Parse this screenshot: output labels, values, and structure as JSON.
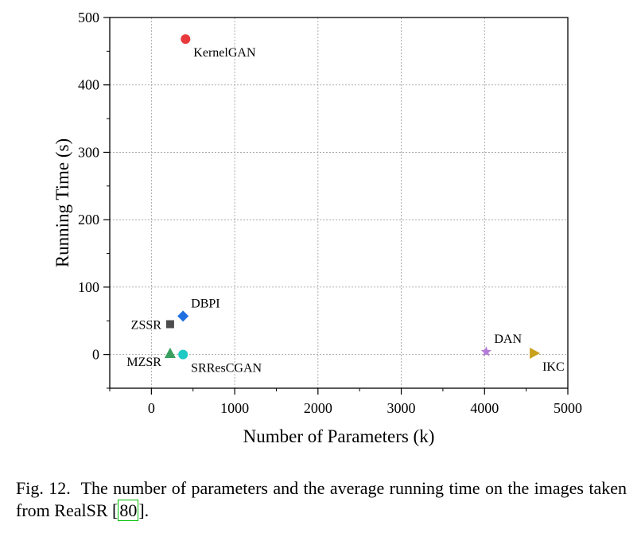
{
  "chart_data": {
    "type": "scatter",
    "xlabel": "Number of Parameters (k)",
    "ylabel": "Running Time (s)",
    "xlim": [
      -500,
      5000
    ],
    "ylim": [
      -50,
      500
    ],
    "xticks": [
      0,
      1000,
      2000,
      3000,
      4000,
      5000
    ],
    "yticks": [
      0,
      100,
      200,
      300,
      400,
      500
    ],
    "x_tick_labels": [
      "0",
      "1000",
      "2000",
      "3000",
      "4000",
      "5000"
    ],
    "y_tick_labels": [
      "0",
      "100",
      "200",
      "300",
      "400",
      "500"
    ],
    "grid": true,
    "points": [
      {
        "label": "KernelGAN",
        "x": 410,
        "y": 468,
        "marker": "circle",
        "color": "#e8393c",
        "label_pos": "below-right"
      },
      {
        "label": "DBPI",
        "x": 380,
        "y": 57,
        "marker": "diamond",
        "color": "#1f6fe0",
        "label_pos": "above-right"
      },
      {
        "label": "ZSSR",
        "x": 225,
        "y": 45,
        "marker": "square",
        "color": "#4d4d4d",
        "label_pos": "left"
      },
      {
        "label": "MZSR",
        "x": 225,
        "y": 2,
        "marker": "triangle-up",
        "color": "#3a9e5f",
        "label_pos": "below-left"
      },
      {
        "label": "SRResCGAN",
        "x": 380,
        "y": 0,
        "marker": "circle",
        "color": "#1fc9c4",
        "label_pos": "below-right"
      },
      {
        "label": "DAN",
        "x": 4020,
        "y": 4,
        "marker": "star",
        "color": "#b57bd8",
        "label_pos": "above-right"
      },
      {
        "label": "IKC",
        "x": 4600,
        "y": 2,
        "marker": "triangle-right",
        "color": "#c9a11c",
        "label_pos": "below-right"
      }
    ]
  },
  "caption": {
    "prefix": "Fig. 12.",
    "text": "The number of parameters and the average running time on the images taken from RealSR [",
    "cite": "80",
    "suffix": "]."
  }
}
